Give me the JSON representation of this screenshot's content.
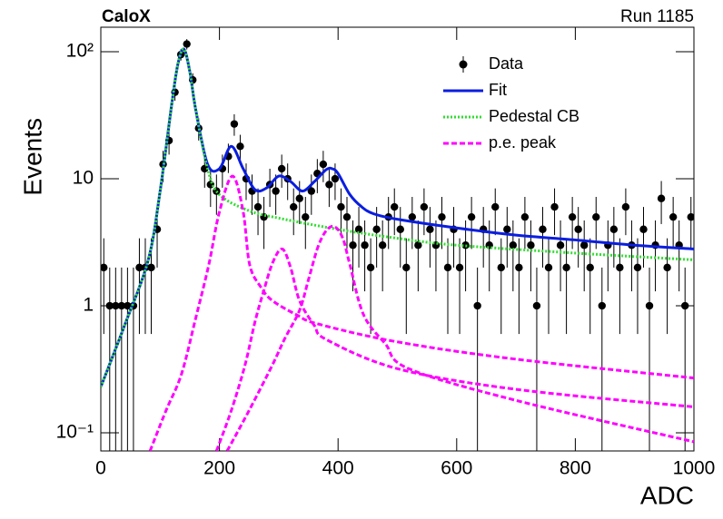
{
  "chart_data": {
    "type": "histfit",
    "title": "CaloX",
    "subtitle": "Run 1185",
    "x_label": "ADC",
    "y_label": "Events",
    "ylog": true,
    "xlim": [
      0,
      1000
    ],
    "ylim": [
      0.072,
      156
    ],
    "xticks": [
      0,
      200,
      400,
      600,
      800,
      1000
    ],
    "yticks": [
      {
        "value": 0.1,
        "label": "10⁻¹"
      },
      1,
      10,
      {
        "value": 100,
        "label": "10²"
      }
    ],
    "legend": "upper right",
    "series": [
      {
        "name": "Data",
        "color": "#000000",
        "style": "points",
        "x": [
          5,
          15,
          25,
          35,
          45,
          55,
          65,
          75,
          85,
          95,
          105,
          115,
          125,
          135,
          145,
          155,
          165,
          175,
          185,
          195,
          205,
          215,
          225,
          235,
          245,
          255,
          265,
          275,
          285,
          295,
          305,
          315,
          325,
          335,
          345,
          355,
          365,
          375,
          385,
          395,
          405,
          415,
          425,
          435,
          445,
          455,
          465,
          475,
          485,
          495,
          505,
          515,
          525,
          535,
          545,
          555,
          565,
          575,
          585,
          595,
          605,
          615,
          625,
          635,
          645,
          655,
          665,
          675,
          685,
          695,
          705,
          715,
          725,
          735,
          745,
          755,
          765,
          775,
          785,
          795,
          805,
          815,
          825,
          835,
          845,
          855,
          865,
          875,
          885,
          895,
          905,
          915,
          925,
          935,
          945,
          955,
          965,
          975,
          985,
          995
        ],
        "values": [
          2,
          1,
          1,
          1,
          1,
          1,
          2,
          2,
          2,
          4,
          13,
          20,
          48,
          95,
          115,
          60,
          25,
          12,
          9,
          8,
          12,
          15,
          27,
          18,
          10,
          8,
          6,
          5,
          9,
          8,
          12,
          10,
          6,
          7,
          5,
          8,
          11,
          13,
          9,
          10,
          6,
          5,
          3,
          4,
          3,
          2,
          4,
          3,
          5,
          6,
          4,
          2,
          5,
          3,
          6,
          4,
          3,
          5,
          2,
          4,
          2,
          3,
          5,
          1,
          4,
          3,
          6,
          2,
          4,
          3,
          2,
          5,
          3,
          1,
          4,
          2,
          6,
          3,
          2,
          5,
          4,
          3,
          2,
          5,
          1,
          3,
          4,
          2,
          6,
          3,
          2,
          4,
          1,
          3,
          7,
          2,
          5,
          3,
          1,
          5
        ],
        "errors": [
          1.4,
          1,
          1,
          1,
          1,
          1,
          1.4,
          1.4,
          1.4,
          2,
          3.6,
          4.5,
          6.9,
          9.7,
          10.7,
          7.7,
          5,
          3.5,
          3,
          2.8,
          3.5,
          3.9,
          5.2,
          4.2,
          3.2,
          2.8,
          2.4,
          2.2,
          3,
          2.8,
          3.5,
          3.2,
          2.4,
          2.6,
          2.2,
          2.8,
          3.3,
          3.6,
          3,
          3.2,
          2.4,
          2.2,
          1.7,
          2,
          1.7,
          1.4,
          2,
          1.7,
          2.2,
          2.4,
          2,
          1.4,
          2.2,
          1.7,
          2.4,
          2,
          1.7,
          2.2,
          1.4,
          2,
          1.4,
          1.7,
          2.2,
          1,
          2,
          1.7,
          2.4,
          1.4,
          2,
          1.7,
          1.4,
          2.2,
          1.7,
          1,
          2,
          1.4,
          2.4,
          1.7,
          1.4,
          2.2,
          2,
          1.7,
          1.4,
          2.2,
          1,
          1.7,
          2,
          1.4,
          2.4,
          1.7,
          1.4,
          2,
          1,
          1.7,
          2.6,
          1.4,
          2.2,
          1.7,
          1,
          2.2
        ]
      },
      {
        "name": "Fit",
        "color": "#0a1ee0",
        "style": "solid",
        "x": [
          0,
          40,
          80,
          100,
          120,
          130,
          140,
          150,
          160,
          180,
          200,
          220,
          240,
          260,
          280,
          300,
          320,
          340,
          360,
          380,
          390,
          400,
          420,
          440,
          460,
          500,
          600,
          700,
          800,
          900,
          1000
        ],
        "values": [
          0.23,
          0.7,
          2.3,
          8,
          40,
          80,
          105,
          70,
          35,
          13,
          12,
          18,
          12,
          8.2,
          8.5,
          10.5,
          9.5,
          8,
          9.5,
          11.8,
          12,
          11,
          7.5,
          6,
          5.3,
          4.8,
          4.1,
          3.6,
          3.3,
          3.0,
          2.8
        ]
      },
      {
        "name": "Pedestal CB",
        "color": "#33dd33",
        "style": "dotted",
        "x": [
          0,
          40,
          80,
          100,
          120,
          130,
          140,
          150,
          160,
          180,
          200,
          250,
          300,
          400,
          500,
          600,
          800,
          1000
        ],
        "values": [
          0.23,
          0.7,
          2.3,
          8,
          40,
          80,
          105,
          70,
          35,
          12,
          7.5,
          5.6,
          4.9,
          4.0,
          3.4,
          3.0,
          2.6,
          2.3
        ]
      },
      {
        "name": "p.e. peak",
        "color": "#ff00ff",
        "style": "dashed",
        "curves": [
          {
            "x": [
              83,
              110,
              136,
              160,
              182,
              200,
              222,
              240,
              251,
              270,
              289,
              330,
              366,
              500,
              700,
              1000
            ],
            "values": [
              0.072,
              0.15,
              0.29,
              0.8,
              2.1,
              5.5,
              10.5,
              5.5,
              2.1,
              1.4,
              1.1,
              0.85,
              0.72,
              0.52,
              0.38,
              0.27
            ]
          },
          {
            "x": [
              195,
              220,
              243,
              260,
              274,
              290,
              306,
              320,
              335,
              360,
              381,
              500,
              700,
              1000
            ],
            "values": [
              0.072,
              0.15,
              0.34,
              0.75,
              1.28,
              2.2,
              2.8,
              2.0,
              1.1,
              0.7,
              0.54,
              0.32,
              0.22,
              0.16
            ]
          },
          {
            "x": [
              213,
              250,
              289,
              310,
              335,
              350,
              366,
              380,
              394,
              408,
              420,
              443,
              480,
              519,
              700,
              1000
            ],
            "values": [
              0.072,
              0.15,
              0.34,
              0.55,
              0.92,
              1.6,
              2.9,
              3.9,
              4.2,
              3.4,
              2.1,
              0.85,
              0.5,
              0.32,
              0.18,
              0.085
            ]
          }
        ]
      }
    ]
  }
}
